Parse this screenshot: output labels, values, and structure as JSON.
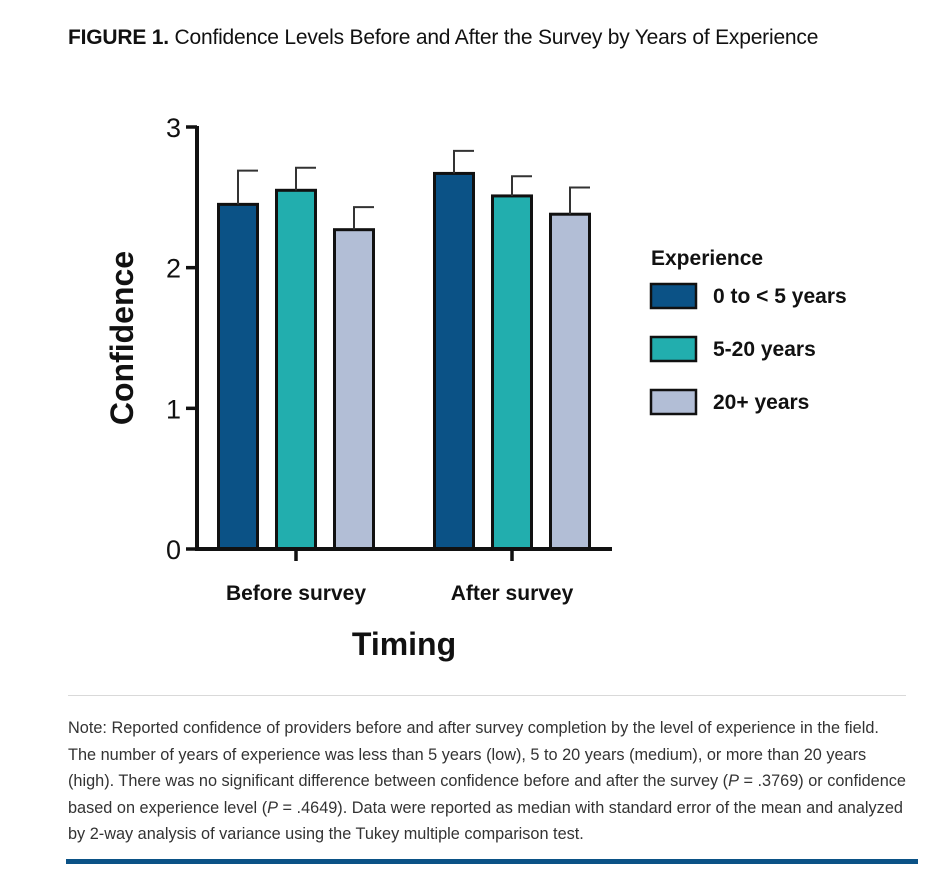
{
  "figure": {
    "label": "FIGURE 1.",
    "title": "Confidence Levels Before and After the Survey by Years of Experience"
  },
  "chart_data": {
    "type": "bar",
    "categories": [
      "Before survey",
      "After survey"
    ],
    "series": [
      {
        "name": "0 to < 5 years",
        "color": "#0b5286",
        "values": [
          2.45,
          2.67
        ],
        "errors": [
          0.24,
          0.16
        ]
      },
      {
        "name": "5-20 years",
        "color": "#22aeae",
        "values": [
          2.55,
          2.51
        ],
        "errors": [
          0.16,
          0.14
        ]
      },
      {
        "name": "20+ years",
        "color": "#b2bed6",
        "values": [
          2.27,
          2.38
        ],
        "errors": [
          0.16,
          0.19
        ]
      }
    ],
    "xlabel": "Timing",
    "ylabel": "Confidence",
    "ylim": [
      0,
      3
    ],
    "yticks": [
      0,
      1,
      2,
      3
    ],
    "legend_title": "Experience",
    "legend_position": "right"
  },
  "note": {
    "label": "Note:",
    "text_a": " Reported confidence of providers before and after survey completion by the level of experience in the field. The number of years of experience was less than 5 years (low), 5 to 20 years (medium), or more than 20 years (high). There was no significant difference between confidence before and after the survey (",
    "p_label_1": "P",
    "text_b": " = .3769) or confidence based on experience level (",
    "p_label_2": "P",
    "text_c": " = .4649). Data were reported as median with standard error of the mean and analyzed by 2-way analysis of variance using the Tukey multiple comparison test."
  }
}
